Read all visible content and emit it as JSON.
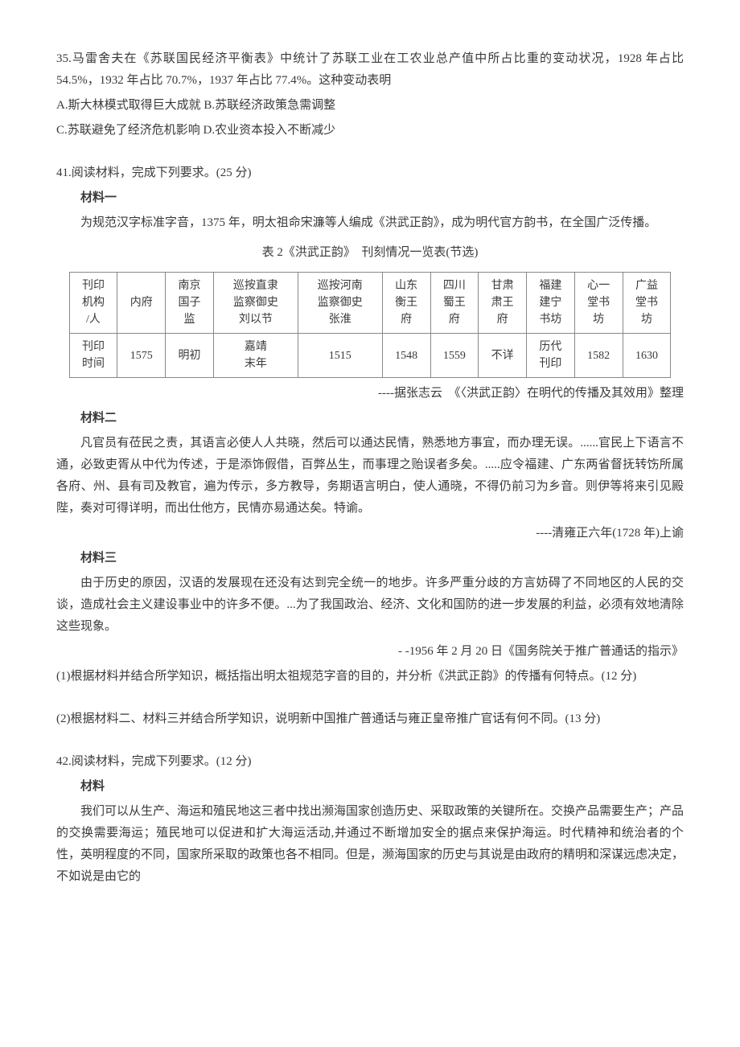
{
  "q35": {
    "text": "35.马雷舍夫在《苏联国民经济平衡表》中统计了苏联工业在工农业总产值中所占比重的变动状况，1928 年占比 54.5%，1932 年占比 70.7%，1937 年占比 77.4%。这种变动表明",
    "optA": "A.斯大林模式取得巨大成就",
    "optB": "B.苏联经济政策急需调整",
    "optC": "C.苏联避免了经济危机影响",
    "optD": "D.农业资本投入不断减少"
  },
  "q41": {
    "lead": "41.阅读材料，完成下列要求。(25 分)",
    "m1_label": "材料一",
    "m1_p1": "为规范汉字标准字音，1375 年，明太祖命宋濂等人编成《洪武正韵》，成为明代官方韵书，在全国广泛传播。",
    "table_caption": "表 2《洪武正韵》　刊刻情况一览表(节选)",
    "table": {
      "row1": [
        "刊印\n机构\n/人",
        "内府",
        "南京\n国子\n监",
        "巡按直隶\n监察御史\n刘以节",
        "巡按河南\n监察御史\n张淮",
        "山东\n衡王\n府",
        "四川\n蜀王\n府",
        "甘肃\n肃王\n府",
        "福建\n建宁\n书坊",
        "心一\n堂书\n坊",
        "广益\n堂书\n坊"
      ],
      "row2": [
        "刊印\n时间",
        "1575",
        "明初",
        "嘉靖\n末年",
        "1515",
        "1548",
        "1559",
        "不详",
        "历代\n刊印",
        "1582",
        "1630"
      ]
    },
    "m1_src": "----据张志云　《〈洪武正韵〉在明代的传播及其效用》整理",
    "m2_label": "材料二",
    "m2_p1": "凡官员有莅民之责，其语言必使人人共晓，然后可以通达民情，熟悉地方事宜，而办理无误。......官民上下语言不通，必致吏胥从中代为传述，于是添饰假借，百弊丛生，而事理之贻误者多矣。.....应令福建、广东两省督抚转饬所属各府、州、县有司及教官，遍为传示，多方教导，务期语言明白，使人通晓，不得仍前习为乡音。则伊等将来引见殿陛，奏对可得详明，而出仕他方，民情亦易通达矣。特谕。",
    "m2_src": "----清雍正六年(1728 年)上谕",
    "m3_label": "材料三",
    "m3_p1": "由于历史的原因，汉语的发展现在还没有达到完全统一的地步。许多严重分歧的方言妨碍了不同地区的人民的交谈，造成社会主义建设事业中的许多不便。...为了我国政治、经济、文化和国防的进一步发展的利益，必须有效地清除这些现象。",
    "m3_src": "- -1956 年 2 月 20 日《国务院关于推广普通话的指示》",
    "sub1": "(1)根据材料并结合所学知识，概括指出明太祖规范字音的目的，并分析《洪武正韵》的传播有何特点。(12 分)",
    "sub2": "(2)根据材料二、材料三并结合所学知识，说明新中国推广普通话与雍正皇帝推广官话有何不同。(13 分)"
  },
  "q42": {
    "lead": "42.阅读材料，完成下列要求。(12 分)",
    "m_label": "材料",
    "p1": "我们可以从生产、海运和殖民地这三者中找出濒海国家创造历史、采取政策的关键所在。交换产品需要生产；产品的交换需要海运；殖民地可以促进和扩大海运活动,并通过不断增加安全的据点来保护海运。时代精神和统治者的个性，英明程度的不同，国家所采取的政策也各不相同。但是，濒海国家的历史与其说是由政府的精明和深谋远虑决定，不如说是由它的"
  }
}
